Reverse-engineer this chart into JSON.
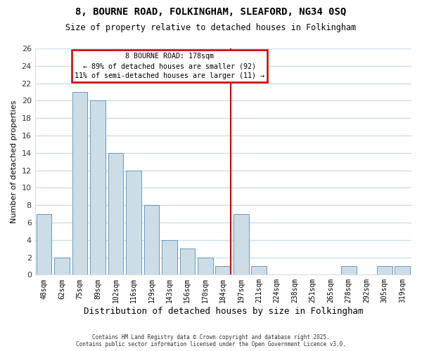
{
  "title": "8, BOURNE ROAD, FOLKINGHAM, SLEAFORD, NG34 0SQ",
  "subtitle": "Size of property relative to detached houses in Folkingham",
  "xlabel": "Distribution of detached houses by size in Folkingham",
  "ylabel": "Number of detached properties",
  "bar_labels": [
    "48sqm",
    "62sqm",
    "75sqm",
    "89sqm",
    "102sqm",
    "116sqm",
    "129sqm",
    "143sqm",
    "156sqm",
    "170sqm",
    "184sqm",
    "197sqm",
    "211sqm",
    "224sqm",
    "238sqm",
    "251sqm",
    "265sqm",
    "278sqm",
    "292sqm",
    "305sqm",
    "319sqm"
  ],
  "bar_values": [
    7,
    2,
    21,
    20,
    14,
    12,
    8,
    4,
    3,
    2,
    1,
    7,
    1,
    0,
    0,
    0,
    0,
    1,
    0,
    1,
    1
  ],
  "bar_color": "#ccdde8",
  "bar_edge_color": "#6699bb",
  "vline_index": 10,
  "ylim": [
    0,
    26
  ],
  "yticks": [
    0,
    2,
    4,
    6,
    8,
    10,
    12,
    14,
    16,
    18,
    20,
    22,
    24,
    26
  ],
  "annotation_title": "8 BOURNE ROAD: 178sqm",
  "annotation_line1": "← 89% of detached houses are smaller (92)",
  "annotation_line2": "11% of semi-detached houses are larger (11) →",
  "annotation_box_color": "#ffffff",
  "annotation_box_edge": "#cc0000",
  "vline_color": "#cc0000",
  "grid_color": "#d0dce8",
  "footer1": "Contains HM Land Registry data © Crown copyright and database right 2025.",
  "footer2": "Contains public sector information licensed under the Open Government Licence v3.0.",
  "background_color": "#ffffff",
  "plot_bg_color": "#ffffff"
}
